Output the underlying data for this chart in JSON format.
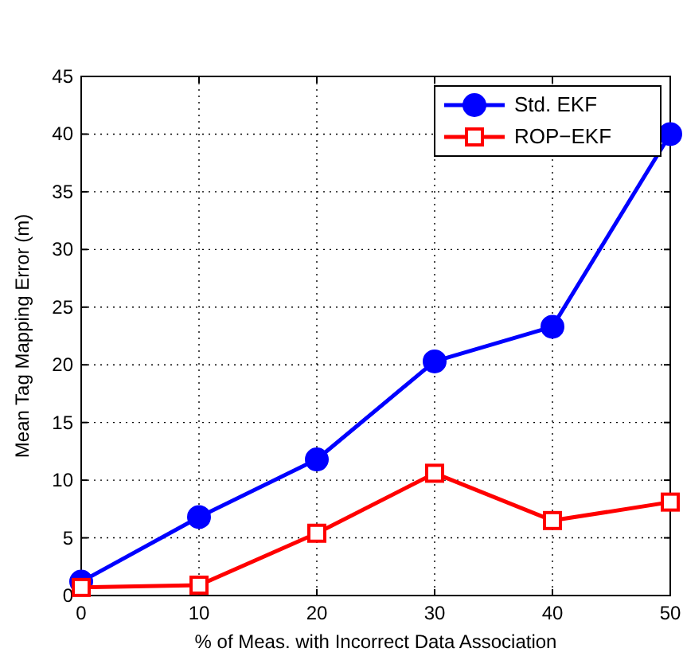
{
  "chart_data": {
    "type": "line",
    "xlabel": "% of Meas. with Incorrect Data Association",
    "ylabel": "Mean Tag Mapping Error (m)",
    "x": [
      0,
      10,
      20,
      30,
      40,
      50
    ],
    "xlim": [
      0,
      50
    ],
    "xticks": [
      0,
      10,
      20,
      30,
      40,
      50
    ],
    "ylim": [
      0,
      45
    ],
    "yticks": [
      0,
      5,
      10,
      15,
      20,
      25,
      30,
      35,
      40,
      45
    ],
    "grid": true,
    "legend": "top right",
    "line_style": "solid",
    "series": [
      {
        "name": "Std. EKF",
        "color": "#0000ff",
        "marker": "circle",
        "values": [
          1.2,
          6.8,
          11.8,
          20.3,
          23.3,
          40
        ]
      },
      {
        "name": "ROP−EKF",
        "color": "#ff0000",
        "marker": "square",
        "values": [
          0.7,
          0.9,
          5.4,
          10.6,
          6.5,
          8.1
        ]
      }
    ]
  }
}
